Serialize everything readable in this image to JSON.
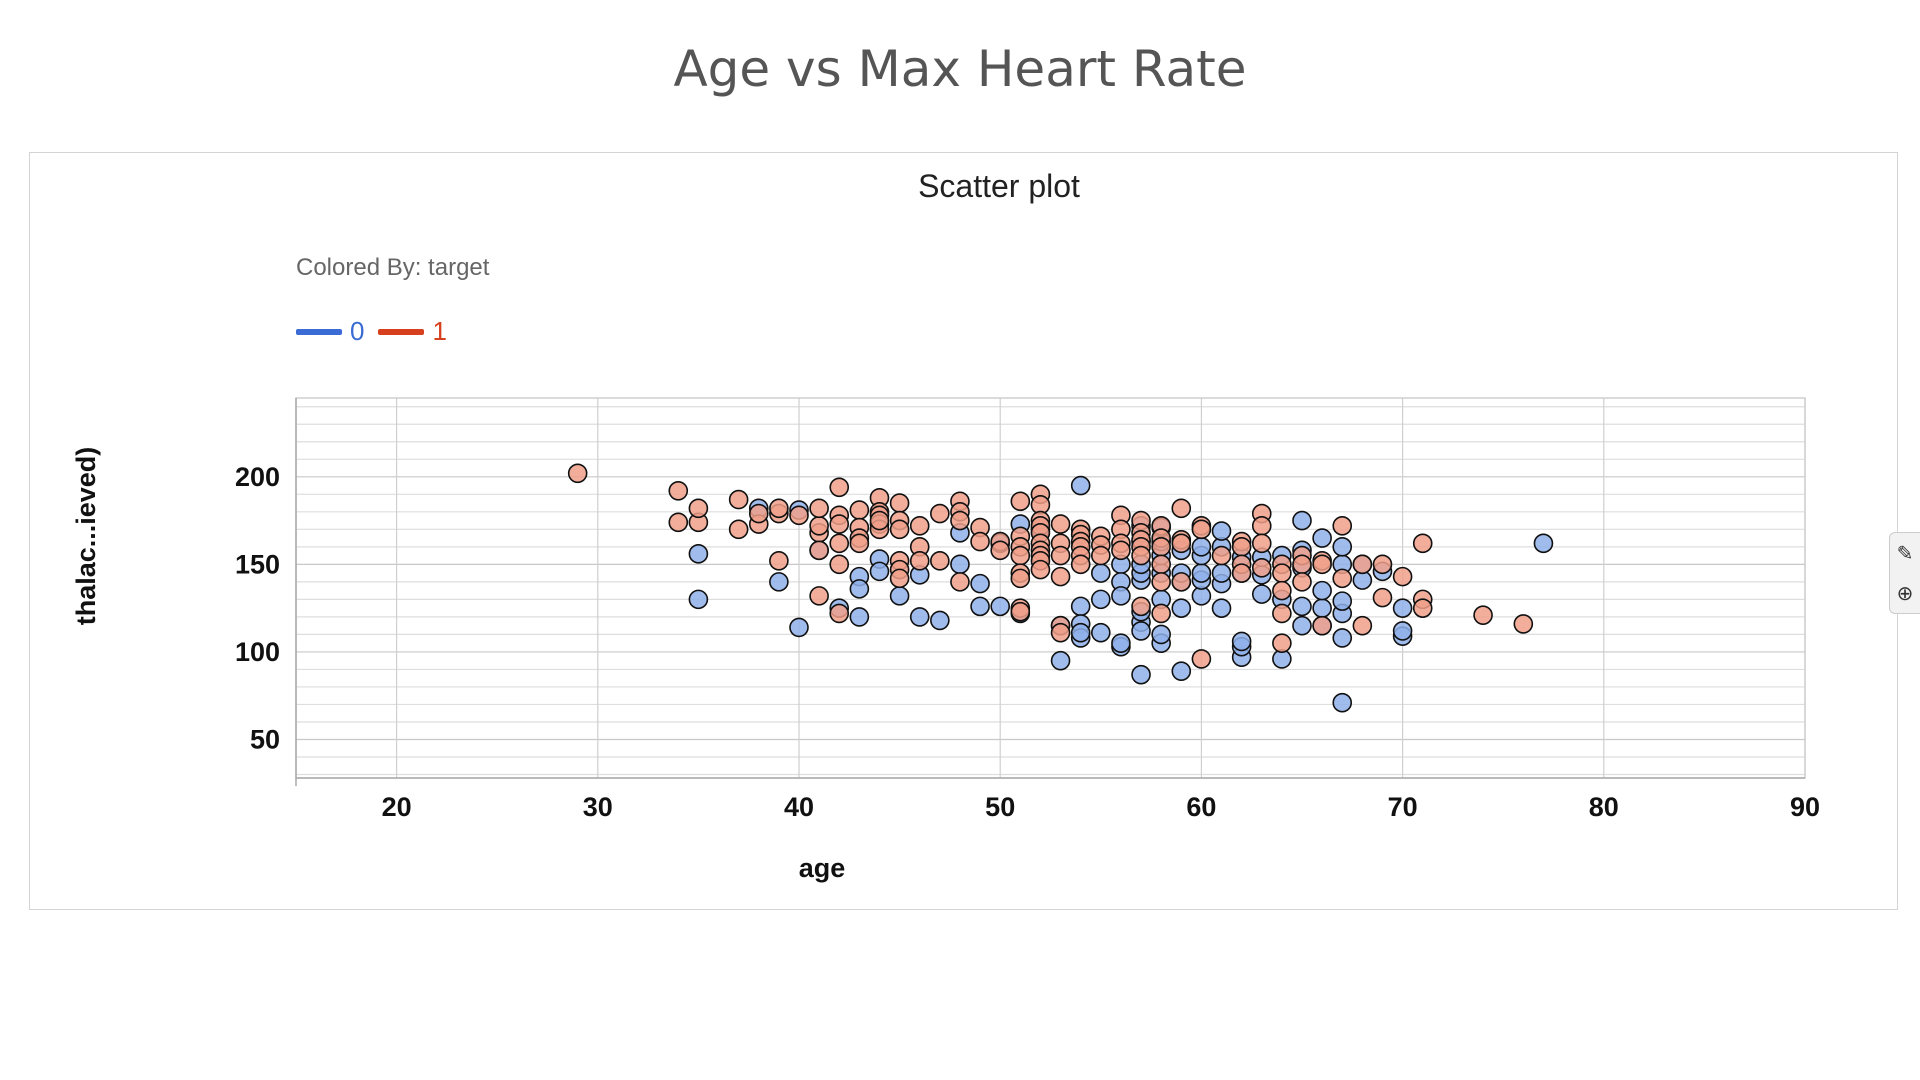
{
  "page_title": "Age vs Max Heart Rate",
  "panel": {
    "title": "Scatter plot",
    "colored_by": "Colored By: target"
  },
  "tools": {
    "brush_icon": "brush-icon",
    "zoom_icon": "zoom-icon"
  },
  "chart_data": {
    "type": "scatter",
    "title": "Scatter plot",
    "xlabel": "age",
    "ylabel": "thalac...ieved)",
    "xlim": [
      15,
      90
    ],
    "ylim": [
      28,
      245
    ],
    "xticks": [
      20,
      30,
      40,
      50,
      60,
      70,
      80,
      90
    ],
    "yticks": [
      50,
      100,
      150,
      200
    ],
    "grid": true,
    "legend_title": "Colored By: target",
    "legend_position": "top-left",
    "colors": {
      "0": "#3b6bd4",
      "1": "#d6401e",
      "0_fill": "#8fb0ea",
      "1_fill": "#f0a08a"
    },
    "series": [
      {
        "name": "0",
        "points": [
          [
            35,
            156
          ],
          [
            35,
            130
          ],
          [
            38,
            182
          ],
          [
            39,
            140
          ],
          [
            40,
            114
          ],
          [
            40,
            181
          ],
          [
            41,
            158
          ],
          [
            42,
            125
          ],
          [
            43,
            120
          ],
          [
            43,
            143
          ],
          [
            43,
            136
          ],
          [
            44,
            153
          ],
          [
            44,
            146
          ],
          [
            45,
            132
          ],
          [
            46,
            144
          ],
          [
            46,
            120
          ],
          [
            47,
            118
          ],
          [
            48,
            168
          ],
          [
            48,
            150
          ],
          [
            49,
            139
          ],
          [
            49,
            126
          ],
          [
            50,
            126
          ],
          [
            50,
            162
          ],
          [
            51,
            173
          ],
          [
            51,
            122
          ],
          [
            52,
            170
          ],
          [
            53,
            95
          ],
          [
            53,
            115
          ],
          [
            54,
            195
          ],
          [
            54,
            126
          ],
          [
            54,
            116
          ],
          [
            54,
            108
          ],
          [
            54,
            111
          ],
          [
            55,
            130
          ],
          [
            55,
            111
          ],
          [
            55,
            145
          ],
          [
            56,
            150
          ],
          [
            56,
            140
          ],
          [
            56,
            132
          ],
          [
            56,
            103
          ],
          [
            56,
            105
          ],
          [
            57,
            87
          ],
          [
            57,
            117
          ],
          [
            57,
            112
          ],
          [
            57,
            123
          ],
          [
            57,
            141
          ],
          [
            57,
            145
          ],
          [
            57,
            150
          ],
          [
            57,
            163
          ],
          [
            57,
            172
          ],
          [
            58,
            105
          ],
          [
            58,
            110
          ],
          [
            58,
            130
          ],
          [
            58,
            145
          ],
          [
            58,
            155
          ],
          [
            58,
            163
          ],
          [
            58,
            171
          ],
          [
            59,
            89
          ],
          [
            59,
            125
          ],
          [
            59,
            140
          ],
          [
            59,
            145
          ],
          [
            59,
            158
          ],
          [
            60,
            132
          ],
          [
            60,
            141
          ],
          [
            60,
            145
          ],
          [
            60,
            155
          ],
          [
            60,
            160
          ],
          [
            61,
            125
          ],
          [
            61,
            139
          ],
          [
            61,
            145
          ],
          [
            61,
            160
          ],
          [
            61,
            169
          ],
          [
            62,
            97
          ],
          [
            62,
            103
          ],
          [
            62,
            106
          ],
          [
            62,
            145
          ],
          [
            62,
            154
          ],
          [
            63,
            133
          ],
          [
            63,
            144
          ],
          [
            63,
            154
          ],
          [
            64,
            96
          ],
          [
            64,
            130
          ],
          [
            64,
            155
          ],
          [
            65,
            115
          ],
          [
            65,
            126
          ],
          [
            65,
            148
          ],
          [
            65,
            158
          ],
          [
            65,
            175
          ],
          [
            66,
            115
          ],
          [
            66,
            125
          ],
          [
            66,
            135
          ],
          [
            66,
            165
          ],
          [
            67,
            71
          ],
          [
            67,
            108
          ],
          [
            67,
            122
          ],
          [
            67,
            129
          ],
          [
            67,
            150
          ],
          [
            67,
            160
          ],
          [
            68,
            141
          ],
          [
            68,
            150
          ],
          [
            69,
            146
          ],
          [
            70,
            109
          ],
          [
            70,
            112
          ],
          [
            70,
            125
          ],
          [
            77,
            162
          ]
        ]
      },
      {
        "name": "1",
        "points": [
          [
            29,
            202
          ],
          [
            34,
            174
          ],
          [
            34,
            192
          ],
          [
            35,
            174
          ],
          [
            35,
            182
          ],
          [
            37,
            170
          ],
          [
            37,
            187
          ],
          [
            38,
            173
          ],
          [
            38,
            179
          ],
          [
            39,
            179
          ],
          [
            39,
            182
          ],
          [
            39,
            152
          ],
          [
            40,
            178
          ],
          [
            41,
            168
          ],
          [
            41,
            158
          ],
          [
            41,
            172
          ],
          [
            41,
            182
          ],
          [
            41,
            132
          ],
          [
            42,
            194
          ],
          [
            42,
            178
          ],
          [
            42,
            173
          ],
          [
            42,
            162
          ],
          [
            42,
            150
          ],
          [
            42,
            122
          ],
          [
            43,
            181
          ],
          [
            43,
            171
          ],
          [
            43,
            165
          ],
          [
            43,
            162
          ],
          [
            44,
            188
          ],
          [
            44,
            180
          ],
          [
            44,
            178
          ],
          [
            44,
            173
          ],
          [
            44,
            170
          ],
          [
            44,
            175
          ],
          [
            45,
            185
          ],
          [
            45,
            175
          ],
          [
            45,
            170
          ],
          [
            45,
            152
          ],
          [
            45,
            147
          ],
          [
            45,
            142
          ],
          [
            46,
            172
          ],
          [
            46,
            160
          ],
          [
            46,
            152
          ],
          [
            47,
            179
          ],
          [
            47,
            152
          ],
          [
            48,
            186
          ],
          [
            48,
            180
          ],
          [
            48,
            175
          ],
          [
            48,
            140
          ],
          [
            49,
            171
          ],
          [
            49,
            163
          ],
          [
            50,
            163
          ],
          [
            50,
            158
          ],
          [
            51,
            186
          ],
          [
            51,
            166
          ],
          [
            51,
            160
          ],
          [
            51,
            155
          ],
          [
            51,
            145
          ],
          [
            51,
            142
          ],
          [
            51,
            125
          ],
          [
            51,
            123
          ],
          [
            52,
            190
          ],
          [
            52,
            184
          ],
          [
            52,
            175
          ],
          [
            52,
            172
          ],
          [
            52,
            168
          ],
          [
            52,
            162
          ],
          [
            52,
            158
          ],
          [
            52,
            155
          ],
          [
            52,
            152
          ],
          [
            52,
            147
          ],
          [
            53,
            173
          ],
          [
            53,
            162
          ],
          [
            53,
            155
          ],
          [
            53,
            143
          ],
          [
            53,
            115
          ],
          [
            53,
            111
          ],
          [
            54,
            170
          ],
          [
            54,
            167
          ],
          [
            54,
            163
          ],
          [
            54,
            160
          ],
          [
            54,
            155
          ],
          [
            54,
            150
          ],
          [
            55,
            166
          ],
          [
            55,
            161
          ],
          [
            55,
            155
          ],
          [
            56,
            178
          ],
          [
            56,
            170
          ],
          [
            56,
            162
          ],
          [
            56,
            158
          ],
          [
            57,
            175
          ],
          [
            57,
            168
          ],
          [
            57,
            164
          ],
          [
            57,
            160
          ],
          [
            57,
            155
          ],
          [
            57,
            126
          ],
          [
            58,
            172
          ],
          [
            58,
            165
          ],
          [
            58,
            160
          ],
          [
            58,
            150
          ],
          [
            58,
            140
          ],
          [
            58,
            122
          ],
          [
            59,
            182
          ],
          [
            59,
            164
          ],
          [
            59,
            162
          ],
          [
            59,
            140
          ],
          [
            60,
            172
          ],
          [
            60,
            170
          ],
          [
            60,
            96
          ],
          [
            61,
            155
          ],
          [
            62,
            163
          ],
          [
            62,
            160
          ],
          [
            62,
            150
          ],
          [
            62,
            145
          ],
          [
            63,
            179
          ],
          [
            63,
            172
          ],
          [
            63,
            162
          ],
          [
            63,
            148
          ],
          [
            64,
            150
          ],
          [
            64,
            145
          ],
          [
            64,
            135
          ],
          [
            64,
            122
          ],
          [
            64,
            105
          ],
          [
            65,
            155
          ],
          [
            65,
            150
          ],
          [
            65,
            140
          ],
          [
            66,
            152
          ],
          [
            66,
            150
          ],
          [
            66,
            115
          ],
          [
            67,
            172
          ],
          [
            67,
            142
          ],
          [
            68,
            150
          ],
          [
            68,
            115
          ],
          [
            69,
            150
          ],
          [
            69,
            131
          ],
          [
            70,
            143
          ],
          [
            71,
            162
          ],
          [
            71,
            130
          ],
          [
            71,
            125
          ],
          [
            74,
            121
          ],
          [
            76,
            116
          ]
        ]
      }
    ]
  }
}
